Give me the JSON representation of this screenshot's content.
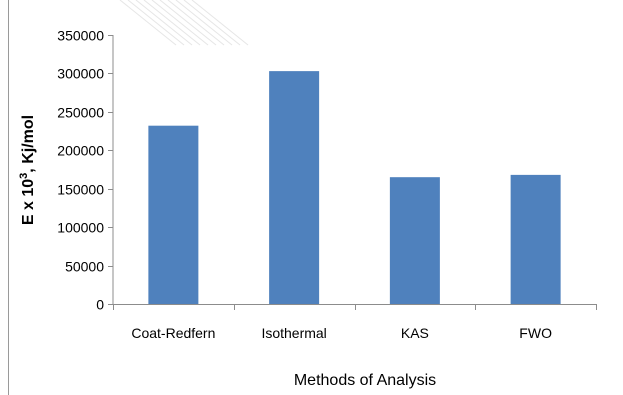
{
  "chart_data": {
    "type": "bar",
    "categories": [
      "Coat-Redfern",
      "Isothermal",
      "KAS",
      "FWO"
    ],
    "values": [
      232000,
      303000,
      165000,
      168000
    ],
    "title": "",
    "xlabel": "Methods of Analysis",
    "ylabel": {
      "before_sup": "E x 10",
      "sup": "3",
      "after_sup": ", Kj/mol"
    },
    "ylim": [
      0,
      350000
    ],
    "yticks": [
      0,
      50000,
      100000,
      150000,
      200000,
      250000,
      300000,
      350000
    ],
    "grid": false,
    "legend": "none",
    "bar_color": "#4f81bd"
  }
}
